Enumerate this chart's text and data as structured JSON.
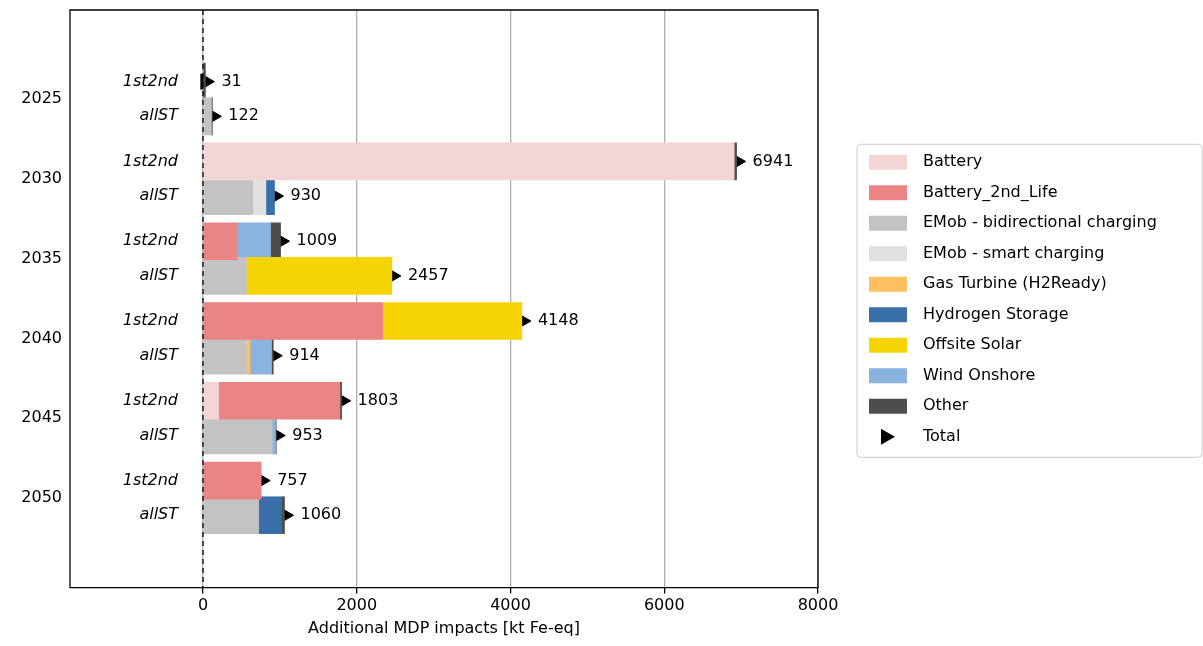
{
  "chart_data": {
    "type": "bar",
    "orientation": "horizontal",
    "stacked": true,
    "categories": [
      "1st2nd",
      "allST",
      "1st2nd",
      "allST",
      "1st2nd",
      "allST",
      "1st2nd",
      "allST",
      "1st2nd",
      "allST",
      "1st2nd",
      "allST"
    ],
    "annotations": [
      "2025",
      "2030",
      "2035",
      "2040",
      "2045",
      "2050"
    ],
    "xlabel": "Additional MDP impacts [kt Fe-eq]",
    "xlim": [
      -1730,
      8000
    ],
    "xticks": [
      0,
      2000,
      4000,
      6000,
      8000
    ],
    "grid": "x",
    "legend": "right",
    "ref_lines": [
      {
        "axis": "x",
        "value": 0,
        "color": "#000000",
        "line_style": "dashed"
      }
    ],
    "series": [
      {
        "name": "Battery",
        "color": "#f4d5d5",
        "values": [
          null,
          null,
          6910,
          null,
          null,
          null,
          null,
          null,
          202,
          null,
          null,
          null
        ]
      },
      {
        "name": "Battery_2nd_Life",
        "color": "#eb8585",
        "values": [
          null,
          null,
          null,
          null,
          445,
          null,
          2337,
          null,
          1579,
          null,
          757,
          null
        ]
      },
      {
        "name": "EMob - bidirectional charging",
        "color": "#c3c3c3",
        "values": [
          null,
          110,
          null,
          648,
          null,
          566,
          null,
          566,
          null,
          901,
          null,
          723
        ]
      },
      {
        "name": "EMob - smart charging",
        "color": "#e0e0e0",
        "values": [
          null,
          null,
          null,
          170,
          null,
          null,
          null,
          null,
          null,
          null,
          null,
          null
        ]
      },
      {
        "name": "Gas Turbine (H2Ready)",
        "color": "#fdbf5f",
        "values": [
          null,
          null,
          null,
          null,
          null,
          null,
          null,
          48,
          null,
          null,
          null,
          null
        ]
      },
      {
        "name": "Hydrogen Storage",
        "color": "#386fa8",
        "values": [
          null,
          null,
          null,
          112,
          null,
          null,
          null,
          null,
          null,
          null,
          null,
          299
        ]
      },
      {
        "name": "Offsite Solar",
        "color": "#f6d404",
        "values": [
          null,
          null,
          null,
          null,
          null,
          1891,
          1811,
          null,
          null,
          null,
          null,
          null
        ]
      },
      {
        "name": "Wind Onshore",
        "color": "#8ab4df",
        "values": [
          null,
          null,
          null,
          null,
          434,
          null,
          null,
          278,
          null,
          43,
          null,
          null
        ]
      },
      {
        "name": "Other",
        "color": "#4d4d4d",
        "values": [
          31,
          12,
          31,
          null,
          130,
          null,
          null,
          22,
          22,
          9,
          null,
          38
        ]
      },
      {
        "name": "Total",
        "type": "scatter",
        "marker": "triangle",
        "color": "#000000",
        "values": [
          31,
          122,
          6941,
          930,
          1009,
          2457,
          4148,
          914,
          1803,
          953,
          757,
          1060
        ],
        "value_labels": [
          "31",
          "122",
          "6941",
          "930",
          "1009",
          "2457",
          "4148",
          "914",
          "1803",
          "953",
          "757",
          "1060"
        ]
      }
    ]
  }
}
